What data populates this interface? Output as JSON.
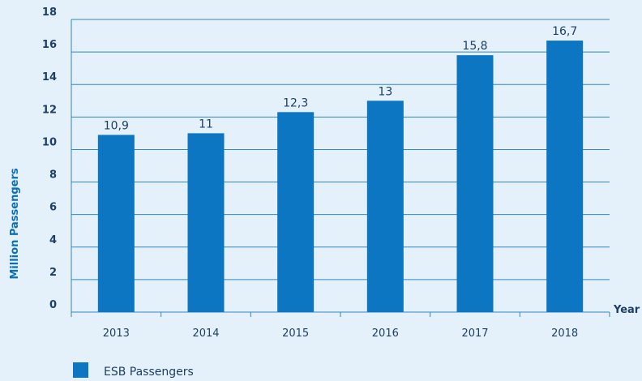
{
  "colors": {
    "bar": "#0d76c3",
    "grid": "#2f86c9",
    "text": "#1b3f66",
    "axis_title": "#0a6fb8"
  },
  "chart_data": {
    "type": "bar",
    "title": "",
    "categories": [
      "2013",
      "2014",
      "2015",
      "2016",
      "2017",
      "2018"
    ],
    "series": [
      {
        "name": "ESB Passengers",
        "values": [
          10.9,
          11,
          12.3,
          13,
          15.8,
          16.7
        ],
        "labels": [
          "10,9",
          "11",
          "12,3",
          "13",
          "15,8",
          "16,7"
        ]
      }
    ],
    "xlabel": "Year",
    "ylabel": "Million Passengers",
    "ylim": [
      0,
      18
    ],
    "yticks": [
      0,
      2,
      4,
      6,
      8,
      10,
      12,
      14,
      16,
      18
    ],
    "grid": true,
    "legend": "bottom-left"
  }
}
